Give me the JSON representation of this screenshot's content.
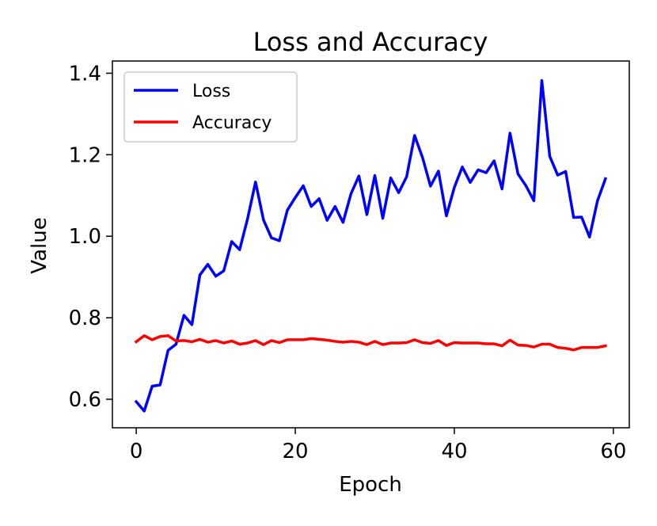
{
  "chart_data": {
    "type": "line",
    "title": "Loss and Accuracy",
    "xlabel": "Epoch",
    "ylabel": "Value",
    "xlim": [
      -3,
      62
    ],
    "ylim": [
      0.53,
      1.43
    ],
    "xticks": [
      0,
      20,
      40,
      60
    ],
    "yticks": [
      0.6,
      0.8,
      1.0,
      1.2,
      1.4
    ],
    "xtick_labels": [
      "0",
      "20",
      "40",
      "60"
    ],
    "ytick_labels": [
      "0.6",
      "0.8",
      "1.0",
      "1.2",
      "1.4"
    ],
    "grid": false,
    "legend_position": "top-left",
    "x": [
      0,
      1,
      2,
      3,
      4,
      5,
      6,
      7,
      8,
      9,
      10,
      11,
      12,
      13,
      14,
      15,
      16,
      17,
      18,
      19,
      20,
      21,
      22,
      23,
      24,
      25,
      26,
      27,
      28,
      29,
      30,
      31,
      32,
      33,
      34,
      35,
      36,
      37,
      38,
      39,
      40,
      41,
      42,
      43,
      44,
      45,
      46,
      47,
      48,
      49,
      50,
      51,
      52,
      53,
      54,
      55,
      56,
      57,
      58,
      59
    ],
    "series": [
      {
        "name": "Loss",
        "color": "#0000ff",
        "values": [
          0.594,
          0.571,
          0.632,
          0.635,
          0.72,
          0.735,
          0.806,
          0.783,
          0.905,
          0.931,
          0.902,
          0.915,
          0.987,
          0.967,
          1.043,
          1.133,
          1.04,
          0.996,
          0.989,
          1.064,
          1.095,
          1.124,
          1.073,
          1.092,
          1.039,
          1.073,
          1.034,
          1.104,
          1.148,
          1.053,
          1.149,
          1.044,
          1.143,
          1.107,
          1.146,
          1.247,
          1.193,
          1.123,
          1.16,
          1.05,
          1.12,
          1.17,
          1.132,
          1.163,
          1.156,
          1.185,
          1.116,
          1.253,
          1.153,
          1.124,
          1.087,
          1.382,
          1.196,
          1.15,
          1.159,
          1.046,
          1.047,
          0.998,
          1.087,
          1.141
        ]
      },
      {
        "name": "Accuracy",
        "color": "#ff0000",
        "values": [
          0.741,
          0.756,
          0.746,
          0.754,
          0.756,
          0.743,
          0.744,
          0.741,
          0.747,
          0.74,
          0.744,
          0.738,
          0.743,
          0.735,
          0.738,
          0.744,
          0.734,
          0.744,
          0.739,
          0.746,
          0.746,
          0.746,
          0.749,
          0.747,
          0.745,
          0.742,
          0.74,
          0.742,
          0.74,
          0.734,
          0.742,
          0.734,
          0.738,
          0.738,
          0.739,
          0.746,
          0.739,
          0.737,
          0.744,
          0.732,
          0.739,
          0.738,
          0.738,
          0.738,
          0.736,
          0.736,
          0.731,
          0.745,
          0.733,
          0.732,
          0.728,
          0.735,
          0.735,
          0.727,
          0.725,
          0.721,
          0.727,
          0.727,
          0.727,
          0.731
        ]
      }
    ]
  }
}
